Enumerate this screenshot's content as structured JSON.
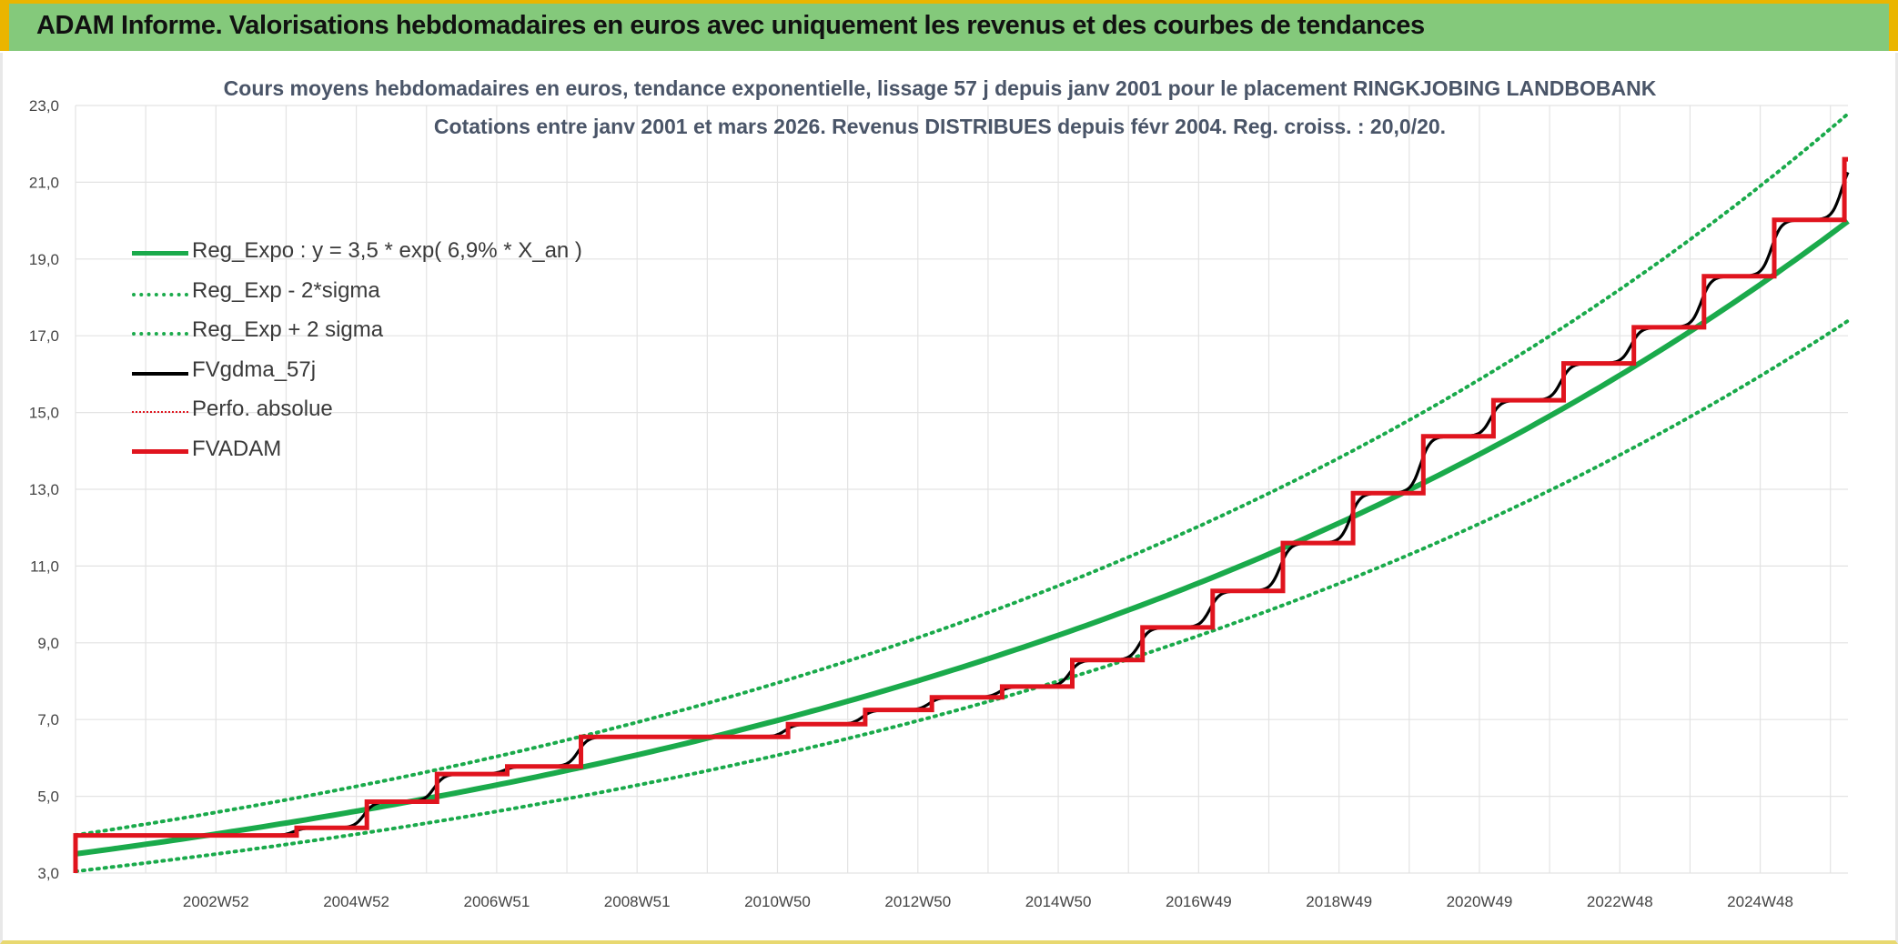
{
  "header": {
    "title": "ADAM Informe. Valorisations hebdomadaires en euros avec uniquement les revenus et des courbes de tendances"
  },
  "chart_data": {
    "type": "line",
    "title_line1": "Cours moyens hebdomadaires en euros, tendance exponentielle, lissage 57 j depuis janv 2001 pour le placement RINGKJOBING LANDBOBANK",
    "title_line2": "Cotations entre janv 2001 et mars 2026. Revenus DISTRIBUES depuis févr 2004. Reg. croiss. : 20,0/20.",
    "ylim": [
      3.0,
      23.0
    ],
    "yticks": [
      "3,0",
      "5,0",
      "7,0",
      "9,0",
      "11,0",
      "13,0",
      "15,0",
      "17,0",
      "19,0",
      "21,0",
      "23,0"
    ],
    "xlim": [
      2001.0,
      2026.25
    ],
    "xtick_labels": [
      "2002W52",
      "2004W52",
      "2006W51",
      "2008W51",
      "2010W50",
      "2012W50",
      "2014W50",
      "2016W49",
      "2018W49",
      "2020W49",
      "2022W48",
      "2024W48"
    ],
    "xtick_years": [
      2003.0,
      2005.0,
      2007.0,
      2009.0,
      2011.0,
      2013.0,
      2015.0,
      2017.0,
      2019.0,
      2021.0,
      2023.0,
      2025.0
    ],
    "series": [
      {
        "name": "Reg_Expo : y = 3,5 * exp( 6,9% *  X_an )",
        "color": "#1aaa4b",
        "style": "solid",
        "formula": {
          "a": 3.5,
          "b": 0.069,
          "factor": 1.0
        }
      },
      {
        "name": "Reg_Exp - 2*sigma",
        "color": "#1aaa4b",
        "style": "dotted",
        "formula": {
          "a": 3.5,
          "b": 0.069,
          "factor": 0.87
        }
      },
      {
        "name": "Reg_Exp + 2 sigma",
        "color": "#1aaa4b",
        "style": "dotted",
        "formula": {
          "a": 3.5,
          "b": 0.069,
          "factor": 1.14
        }
      },
      {
        "name": "FVgdma_57j",
        "color": "#000000",
        "style": "solid"
      },
      {
        "name": "Perfo. absolue",
        "color": "#e0141e",
        "style": "dotted"
      },
      {
        "name": "FVADAM",
        "color": "#e0141e",
        "style": "solid"
      }
    ],
    "fvadam_steps": [
      {
        "x": 2001.0,
        "y": 3.98
      },
      {
        "x": 2004.15,
        "y": 4.18
      },
      {
        "x": 2005.15,
        "y": 4.86
      },
      {
        "x": 2006.15,
        "y": 5.58
      },
      {
        "x": 2007.15,
        "y": 5.78
      },
      {
        "x": 2008.2,
        "y": 6.55
      },
      {
        "x": 2011.15,
        "y": 6.88
      },
      {
        "x": 2012.25,
        "y": 7.25
      },
      {
        "x": 2013.2,
        "y": 7.58
      },
      {
        "x": 2014.2,
        "y": 7.86
      },
      {
        "x": 2015.2,
        "y": 8.55
      },
      {
        "x": 2016.2,
        "y": 9.4
      },
      {
        "x": 2017.2,
        "y": 10.35
      },
      {
        "x": 2018.2,
        "y": 11.6
      },
      {
        "x": 2019.2,
        "y": 12.9
      },
      {
        "x": 2020.2,
        "y": 14.38
      },
      {
        "x": 2021.2,
        "y": 15.32
      },
      {
        "x": 2022.2,
        "y": 16.28
      },
      {
        "x": 2023.2,
        "y": 17.22
      },
      {
        "x": 2024.2,
        "y": 18.55
      },
      {
        "x": 2025.2,
        "y": 20.02
      },
      {
        "x": 2026.2,
        "y": 21.6
      }
    ],
    "fvadam_start_y": 3.0,
    "fvadam_end_x": 2026.25,
    "grid": true,
    "legend_position": "top-left"
  }
}
